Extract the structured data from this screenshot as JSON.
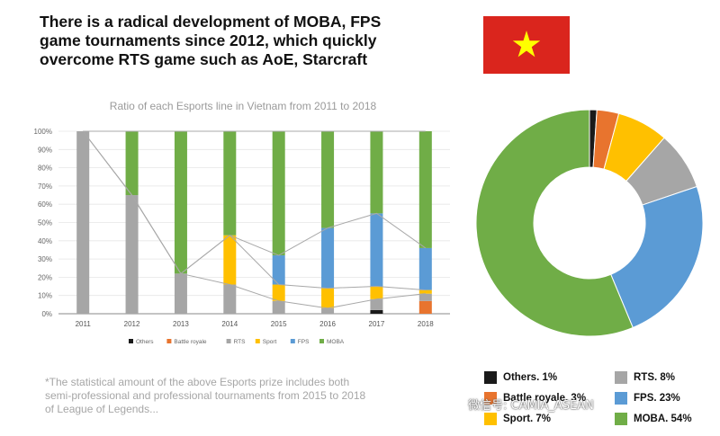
{
  "headline": {
    "line1": "There is a radical development of MOBA, FPS",
    "line2": "game tournaments since 2012, which quickly",
    "line3": "overcome RTS game such as AoE, Starcraft"
  },
  "flag": {
    "name": "vietnam-flag",
    "background": "#da251d",
    "star": "#ffff00"
  },
  "colors": {
    "Others": "#1a1a1a",
    "Battle royale": "#e8742e",
    "RTS": "#a6a6a6",
    "Sport": "#ffc000",
    "FPS": "#5b9bd5",
    "MOBA": "#70ad47"
  },
  "chart_data": [
    {
      "type": "bar",
      "stacked": true,
      "title": "Ratio of each Esports line in Vietnam from 2011 to 2018",
      "categories": [
        "2011",
        "2012",
        "2013",
        "2014",
        "2015",
        "2016",
        "2017",
        "2018"
      ],
      "y_ticks": [
        "0%",
        "10%",
        "20%",
        "30%",
        "40%",
        "50%",
        "60%",
        "70%",
        "80%",
        "90%",
        "100%"
      ],
      "ylim": [
        0,
        100
      ],
      "legend_position": "bottom",
      "series": [
        {
          "name": "Others",
          "values": [
            0,
            0,
            0,
            0,
            0,
            0,
            2,
            0
          ]
        },
        {
          "name": "Battle royale",
          "values": [
            0,
            0,
            0,
            0,
            0,
            0,
            0,
            7
          ]
        },
        {
          "name": "RTS",
          "values": [
            100,
            65,
            22,
            16,
            7,
            3,
            6,
            4
          ]
        },
        {
          "name": "Sport",
          "values": [
            0,
            0,
            0,
            27,
            9,
            11,
            7,
            2
          ]
        },
        {
          "name": "FPS",
          "values": [
            0,
            0,
            0,
            0,
            16,
            33,
            40,
            23
          ]
        },
        {
          "name": "MOBA",
          "values": [
            0,
            35,
            78,
            57,
            68,
            53,
            45,
            64
          ]
        }
      ]
    },
    {
      "type": "pie",
      "donut": true,
      "legend_position": "bottom-right",
      "slices": [
        {
          "name": "Others",
          "label": "Others. 1%",
          "value": 1
        },
        {
          "name": "Battle royale",
          "label": "Battle royale. 3%",
          "value": 3
        },
        {
          "name": "Sport",
          "label": "Sport. 7%",
          "value": 7
        },
        {
          "name": "RTS",
          "label": "RTS. 8%",
          "value": 8
        },
        {
          "name": "FPS",
          "label": "FPS. 23%",
          "value": 23
        },
        {
          "name": "MOBA",
          "label": "MOBA. 54%",
          "value": 54
        }
      ]
    }
  ],
  "footnote": {
    "line1": "*The statistical amount of the above Esports prize includes both",
    "line2": "semi-professional and professional tournaments from 2015 to 2018",
    "line3": "of League of Legends..."
  },
  "watermark": "微信号: CAMIA_ASEAN"
}
